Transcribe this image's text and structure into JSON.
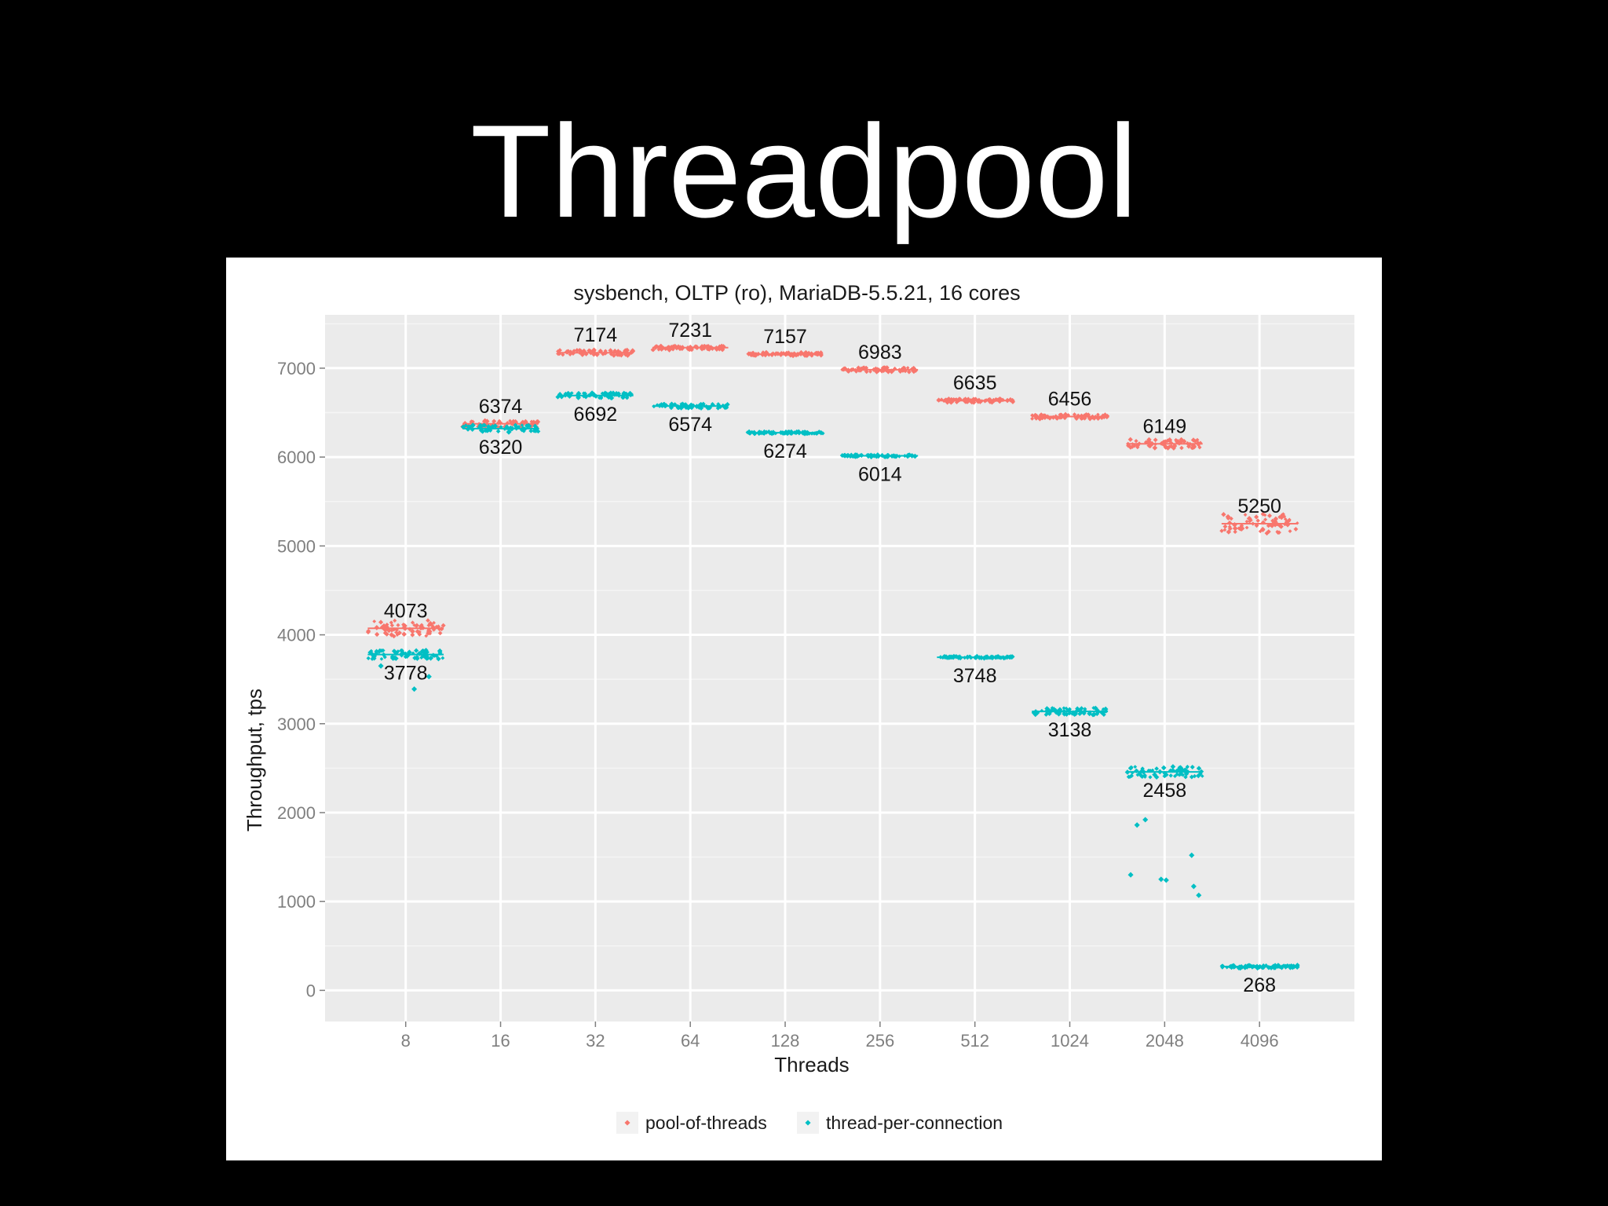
{
  "slide": {
    "title": "Threadpool"
  },
  "chart_data": {
    "type": "scatter",
    "title": "sysbench,  OLTP (ro), MariaDB-5.5.21, 16 cores",
    "xlabel": "Threads",
    "ylabel": "Throughput, tps",
    "x_scale": "categorical",
    "categories": [
      "8",
      "16",
      "32",
      "64",
      "128",
      "256",
      "512",
      "1024",
      "2048",
      "4096"
    ],
    "yticks": [
      0,
      1000,
      2000,
      3000,
      4000,
      5000,
      6000,
      7000
    ],
    "ylim": [
      -350,
      7600
    ],
    "grid": true,
    "legend_position": "bottom",
    "series": [
      {
        "name": "pool-of-threads",
        "color": "#F8766D",
        "values": [
          4073,
          6374,
          7174,
          7231,
          7157,
          6983,
          6635,
          6456,
          6149,
          5250
        ],
        "value_labels": [
          "4073",
          "6374",
          "7174",
          "7231",
          "7157",
          "6983",
          "6635",
          "6456",
          "6149",
          "5250"
        ],
        "spread": [
          90,
          40,
          30,
          25,
          20,
          25,
          20,
          25,
          50,
          110
        ]
      },
      {
        "name": "thread-per-connection",
        "color": "#00BFC4",
        "values": [
          3778,
          6320,
          6692,
          6574,
          6274,
          6014,
          3748,
          3138,
          2458,
          268
        ],
        "value_labels": [
          "3778",
          "6320",
          "6692",
          "6574",
          "6274",
          "6014",
          "3748",
          "3138",
          "2458",
          "268"
        ],
        "spread": [
          50,
          40,
          30,
          25,
          12,
          12,
          10,
          40,
          60,
          18
        ],
        "outliers": [
          {
            "x": "8",
            "y": 3530
          },
          {
            "x": "8",
            "y": 3390
          },
          {
            "x": "8",
            "y": 3650
          },
          {
            "x": "2048",
            "y": 1860
          },
          {
            "x": "2048",
            "y": 1170
          },
          {
            "x": "2048",
            "y": 1240
          },
          {
            "x": "2048",
            "y": 1920
          },
          {
            "x": "2048",
            "y": 1250
          },
          {
            "x": "2048",
            "y": 1070
          },
          {
            "x": "2048",
            "y": 1300
          },
          {
            "x": "2048",
            "y": 1520
          }
        ]
      }
    ]
  }
}
